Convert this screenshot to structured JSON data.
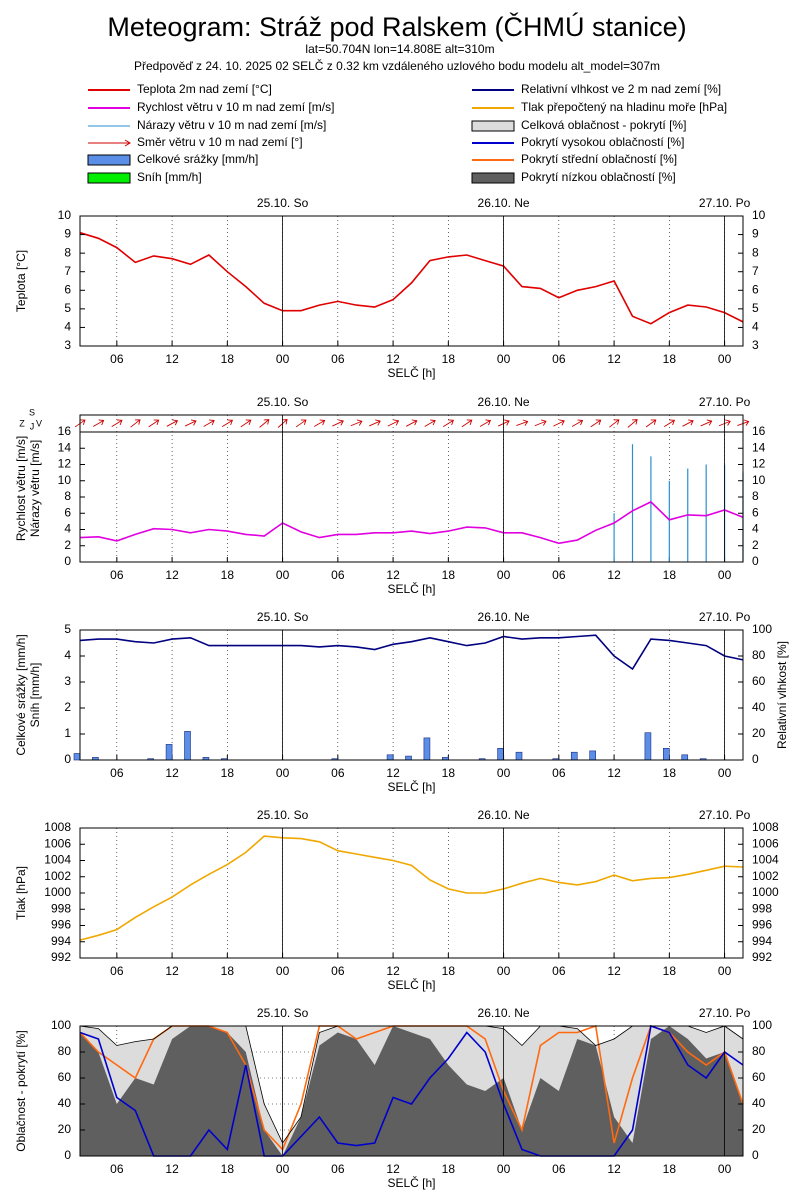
{
  "header": {
    "title": "Meteogram: Stráž pod Ralskem (ČHMÚ stanice)",
    "location": "lat=50.704N lon=14.808E alt=310m",
    "forecast": "Předpověď z 24. 10. 2025 02 SELČ z 0.32 km vzdáleného uzlového bodu modelu alt_model=307m"
  },
  "chart_data": [
    {
      "type": "line",
      "ylabel": [
        "Teplota [°C]"
      ],
      "xlabel": "SELČ [h]",
      "xgrid": true,
      "ygrid": false,
      "xlim": [
        2,
        74
      ],
      "xticks": [
        {
          "value": 6,
          "label": "06"
        },
        {
          "value": 12,
          "label": "12"
        },
        {
          "value": 18,
          "label": "18"
        },
        {
          "value": 24,
          "label": "00"
        },
        {
          "value": 30,
          "label": "06"
        },
        {
          "value": 36,
          "label": "12"
        },
        {
          "value": 42,
          "label": "18"
        },
        {
          "value": 48,
          "label": "00"
        },
        {
          "value": 54,
          "label": "06"
        },
        {
          "value": 60,
          "label": "12"
        },
        {
          "value": 66,
          "label": "18"
        },
        {
          "value": 72,
          "label": "00"
        }
      ],
      "days": [
        {
          "value": 24,
          "label": "25.10. So"
        },
        {
          "value": 48,
          "label": "26.10. Ne"
        },
        {
          "value": 72,
          "label": "27.10. Po"
        }
      ],
      "ylim": [
        3,
        10
      ],
      "yticks": [
        3,
        4,
        5,
        6,
        7,
        8,
        9,
        10
      ],
      "x": [
        2,
        4,
        6,
        8,
        10,
        12,
        14,
        16,
        18,
        20,
        22,
        24,
        26,
        28,
        30,
        32,
        34,
        36,
        38,
        40,
        42,
        44,
        46,
        48,
        50,
        52,
        54,
        56,
        58,
        60,
        62,
        64,
        66,
        68,
        70,
        72,
        74
      ],
      "series": [
        {
          "name": "Teplota 2m nad zemí [°C]",
          "color": "#e00000",
          "style": "line",
          "values": [
            9.1,
            8.8,
            8.3,
            7.5,
            7.85,
            7.7,
            7.4,
            7.9,
            7.0,
            6.2,
            5.3,
            4.9,
            4.9,
            5.2,
            5.4,
            5.2,
            5.1,
            5.5,
            6.4,
            7.6,
            7.8,
            7.9,
            7.6,
            7.3,
            6.2,
            6.1,
            5.6,
            6.0,
            6.2,
            6.5,
            4.6,
            4.2,
            4.8,
            5.2,
            5.1,
            4.8,
            4.3
          ]
        }
      ]
    },
    {
      "type": "line",
      "ylabel": [
        "Rychlost větru [m/s]",
        "Nárazy větru [m/s]"
      ],
      "xlabel": "SELČ [h]",
      "xgrid": true,
      "ygrid": false,
      "compass": [
        "S",
        "Z",
        "J",
        "V"
      ],
      "xlim": [
        2,
        74
      ],
      "xticks": [
        {
          "value": 6,
          "label": "06"
        },
        {
          "value": 12,
          "label": "12"
        },
        {
          "value": 18,
          "label": "18"
        },
        {
          "value": 24,
          "label": "00"
        },
        {
          "value": 30,
          "label": "06"
        },
        {
          "value": 36,
          "label": "12"
        },
        {
          "value": 42,
          "label": "18"
        },
        {
          "value": 48,
          "label": "00"
        },
        {
          "value": 54,
          "label": "06"
        },
        {
          "value": 60,
          "label": "12"
        },
        {
          "value": 66,
          "label": "18"
        },
        {
          "value": 72,
          "label": "00"
        }
      ],
      "days": [
        {
          "value": 24,
          "label": "25.10. So"
        },
        {
          "value": 48,
          "label": "26.10. Ne"
        },
        {
          "value": 72,
          "label": "27.10. Po"
        }
      ],
      "ylim": [
        0,
        16
      ],
      "yticks": [
        0,
        2,
        4,
        6,
        8,
        10,
        12,
        14,
        16
      ],
      "x": [
        2,
        4,
        6,
        8,
        10,
        12,
        14,
        16,
        18,
        20,
        22,
        24,
        26,
        28,
        30,
        32,
        34,
        36,
        38,
        40,
        42,
        44,
        46,
        48,
        50,
        52,
        54,
        56,
        58,
        60,
        62,
        64,
        66,
        68,
        70,
        72,
        74
      ],
      "series": [
        {
          "name": "Rychlost větru v 10 m nad zemí [m/s]",
          "color": "#e000e0",
          "style": "line",
          "values": [
            3.0,
            3.1,
            2.6,
            3.4,
            4.1,
            4.0,
            3.6,
            4.0,
            3.8,
            3.4,
            3.2,
            4.8,
            3.7,
            3.0,
            3.4,
            3.4,
            3.6,
            3.6,
            3.8,
            3.5,
            3.8,
            4.3,
            4.2,
            3.6,
            3.6,
            3.0,
            2.3,
            2.7,
            3.9,
            4.8,
            6.3,
            7.4,
            5.2,
            5.8,
            5.7,
            6.4,
            5.5
          ]
        },
        {
          "name": "Nárazy větru v 10 m nad zemí [m/s]",
          "color": "#2a8fcc",
          "style": "impulse",
          "values": [
            null,
            null,
            null,
            null,
            null,
            null,
            null,
            null,
            null,
            null,
            null,
            null,
            null,
            null,
            null,
            null,
            null,
            null,
            null,
            null,
            null,
            null,
            null,
            null,
            null,
            null,
            null,
            null,
            null,
            6,
            14.5,
            13,
            10,
            11.5,
            12,
            12,
            11
          ]
        },
        {
          "name": "Směr větru v 10 m nad zemí [°]",
          "color": "#d00000",
          "style": "arrow",
          "values": [
            235,
            240,
            238,
            232,
            236,
            242,
            245,
            240,
            238,
            236,
            230,
            228,
            235,
            240,
            245,
            248,
            246,
            244,
            242,
            240,
            238,
            236,
            240,
            245,
            250,
            248,
            244,
            240,
            236,
            232,
            230,
            234,
            238,
            242,
            246,
            248,
            250
          ]
        }
      ]
    },
    {
      "type": "bar",
      "ylabel": [
        "Celkové srážky [mm/h]",
        "Sníh [mm/h]"
      ],
      "y2label": "Relativní vlhkost [%]",
      "xlabel": "SELČ [h]",
      "xgrid": true,
      "ygrid": false,
      "xlim": [
        2,
        74
      ],
      "xticks": [
        {
          "value": 6,
          "label": "06"
        },
        {
          "value": 12,
          "label": "12"
        },
        {
          "value": 18,
          "label": "18"
        },
        {
          "value": 24,
          "label": "00"
        },
        {
          "value": 30,
          "label": "06"
        },
        {
          "value": 36,
          "label": "12"
        },
        {
          "value": 42,
          "label": "18"
        },
        {
          "value": 48,
          "label": "00"
        },
        {
          "value": 54,
          "label": "06"
        },
        {
          "value": 60,
          "label": "12"
        },
        {
          "value": 66,
          "label": "18"
        },
        {
          "value": 72,
          "label": "00"
        }
      ],
      "days": [
        {
          "value": 24,
          "label": "25.10. So"
        },
        {
          "value": 48,
          "label": "26.10. Ne"
        },
        {
          "value": 72,
          "label": "27.10. Po"
        }
      ],
      "ylim": [
        0,
        5
      ],
      "yticks": [
        0,
        1,
        2,
        3,
        4,
        5
      ],
      "y2lim": [
        0,
        100
      ],
      "y2ticks": [
        0,
        20,
        40,
        60,
        80,
        100
      ],
      "x": [
        2,
        4,
        6,
        8,
        10,
        12,
        14,
        16,
        18,
        20,
        22,
        24,
        26,
        28,
        30,
        32,
        34,
        36,
        38,
        40,
        42,
        44,
        46,
        48,
        50,
        52,
        54,
        56,
        58,
        60,
        62,
        64,
        66,
        68,
        70,
        72,
        74
      ],
      "series": [
        {
          "name": "Celkové srážky [mm/h]",
          "color": "#5b8ee6",
          "style": "bar",
          "values": [
            0.25,
            0.1,
            0,
            0,
            0.05,
            0.6,
            1.1,
            0.1,
            0.05,
            0,
            0,
            0,
            0,
            0,
            0.05,
            0,
            0,
            0.2,
            0.15,
            0.85,
            0.1,
            0,
            0.05,
            0.45,
            0.3,
            0,
            0.05,
            0.3,
            0.35,
            0,
            0,
            1.05,
            0.45,
            0.2,
            0.05,
            0,
            0
          ]
        },
        {
          "name": "Sníh [mm/h]",
          "color": "#00ee00",
          "style": "bar",
          "values": [
            0,
            0,
            0,
            0,
            0,
            0,
            0,
            0,
            0,
            0,
            0,
            0,
            0,
            0,
            0,
            0,
            0,
            0,
            0,
            0,
            0,
            0,
            0,
            0,
            0,
            0,
            0,
            0,
            0,
            0,
            0,
            0,
            0,
            0,
            0,
            0,
            0
          ]
        },
        {
          "name": "Relativní vlhkost ve 2 m nad zemí [%]",
          "color": "#000080",
          "style": "line",
          "axis": "y2",
          "values": [
            92,
            93,
            93,
            91,
            90,
            93,
            94,
            88,
            88,
            88,
            88,
            88,
            88,
            87,
            88,
            87,
            85,
            89,
            91,
            94,
            91,
            88,
            90,
            95,
            93,
            94,
            94,
            95,
            96,
            80,
            70,
            93,
            92,
            90,
            88,
            80,
            77
          ]
        }
      ]
    },
    {
      "type": "line",
      "ylabel": [
        "Tlak [hPa]"
      ],
      "xlabel": "SELČ [h]",
      "xgrid": true,
      "ygrid": false,
      "xlim": [
        2,
        74
      ],
      "xticks": [
        {
          "value": 6,
          "label": "06"
        },
        {
          "value": 12,
          "label": "12"
        },
        {
          "value": 18,
          "label": "18"
        },
        {
          "value": 24,
          "label": "00"
        },
        {
          "value": 30,
          "label": "06"
        },
        {
          "value": 36,
          "label": "12"
        },
        {
          "value": 42,
          "label": "18"
        },
        {
          "value": 48,
          "label": "00"
        },
        {
          "value": 54,
          "label": "06"
        },
        {
          "value": 60,
          "label": "12"
        },
        {
          "value": 66,
          "label": "18"
        },
        {
          "value": 72,
          "label": "00"
        }
      ],
      "days": [
        {
          "value": 24,
          "label": "25.10. So"
        },
        {
          "value": 48,
          "label": "26.10. Ne"
        },
        {
          "value": 72,
          "label": "27.10. Po"
        }
      ],
      "ylim": [
        992,
        1008
      ],
      "yticks": [
        992,
        994,
        996,
        998,
        1000,
        1002,
        1004,
        1006,
        1008
      ],
      "x": [
        2,
        4,
        6,
        8,
        10,
        12,
        14,
        16,
        18,
        20,
        22,
        24,
        26,
        28,
        30,
        32,
        34,
        36,
        38,
        40,
        42,
        44,
        46,
        48,
        50,
        52,
        54,
        56,
        58,
        60,
        62,
        64,
        66,
        68,
        70,
        72,
        74
      ],
      "series": [
        {
          "name": "Tlak přepočtený na hladinu moře [hPa]",
          "color": "#f0a800",
          "style": "line",
          "values": [
            994.2,
            994.8,
            995.5,
            997,
            998.3,
            999.5,
            1001,
            1002.3,
            1003.5,
            1005,
            1007,
            1006.8,
            1006.7,
            1006.3,
            1005.2,
            1004.8,
            1004.4,
            1004,
            1003.4,
            1001.6,
            1000.5,
            1000,
            1000,
            1000.5,
            1001.2,
            1001.8,
            1001.3,
            1001,
            1001.4,
            1002.2,
            1001.5,
            1001.8,
            1001.9,
            1002.3,
            1002.8,
            1003.3,
            1003.2
          ]
        }
      ]
    },
    {
      "type": "area",
      "ylabel": [
        "Oblačnost - pokrytí [%]"
      ],
      "xlabel": "SELČ [h]",
      "xgrid": true,
      "ygrid": true,
      "xlim": [
        2,
        74
      ],
      "xticks": [
        {
          "value": 6,
          "label": "06"
        },
        {
          "value": 12,
          "label": "12"
        },
        {
          "value": 18,
          "label": "18"
        },
        {
          "value": 24,
          "label": "00"
        },
        {
          "value": 30,
          "label": "06"
        },
        {
          "value": 36,
          "label": "12"
        },
        {
          "value": 42,
          "label": "18"
        },
        {
          "value": 48,
          "label": "00"
        },
        {
          "value": 54,
          "label": "06"
        },
        {
          "value": 60,
          "label": "12"
        },
        {
          "value": 66,
          "label": "18"
        },
        {
          "value": 72,
          "label": "00"
        }
      ],
      "days": [
        {
          "value": 24,
          "label": "25.10. So"
        },
        {
          "value": 48,
          "label": "26.10. Ne"
        },
        {
          "value": 72,
          "label": "27.10. Po"
        }
      ],
      "ylim": [
        0,
        100
      ],
      "yticks": [
        0,
        20,
        40,
        60,
        80,
        100
      ],
      "x": [
        2,
        4,
        6,
        8,
        10,
        12,
        14,
        16,
        18,
        20,
        22,
        24,
        26,
        28,
        30,
        32,
        34,
        36,
        38,
        40,
        42,
        44,
        46,
        48,
        50,
        52,
        54,
        56,
        58,
        60,
        62,
        64,
        66,
        68,
        70,
        72,
        74
      ],
      "series": [
        {
          "name": "Celková oblačnost - pokrytí [%]",
          "color": "#dcdcdc",
          "style": "area",
          "outline": "#000000",
          "values": [
            100,
            98,
            85,
            88,
            90,
            100,
            100,
            100,
            100,
            100,
            40,
            10,
            30,
            95,
            100,
            100,
            100,
            100,
            100,
            100,
            100,
            100,
            100,
            98,
            85,
            100,
            100,
            98,
            85,
            90,
            100,
            100,
            100,
            100,
            95,
            100,
            90
          ]
        },
        {
          "name": "Pokrytí nízkou oblačností [%]",
          "color": "#5f5f5f",
          "style": "area",
          "values": [
            95,
            80,
            40,
            60,
            55,
            90,
            100,
            100,
            95,
            80,
            20,
            0,
            30,
            85,
            95,
            90,
            70,
            100,
            95,
            90,
            70,
            55,
            50,
            60,
            20,
            60,
            50,
            90,
            85,
            30,
            10,
            90,
            100,
            90,
            75,
            80,
            40
          ]
        },
        {
          "name": "Pokrytí střední oblačností [%]",
          "color": "#ff6a10",
          "style": "line",
          "values": [
            95,
            80,
            70,
            60,
            90,
            100,
            100,
            100,
            95,
            70,
            20,
            5,
            40,
            100,
            100,
            90,
            95,
            100,
            100,
            100,
            100,
            100,
            90,
            50,
            20,
            85,
            95,
            95,
            100,
            10,
            60,
            100,
            95,
            80,
            70,
            80,
            40
          ]
        },
        {
          "name": "Pokrytí vysokou oblačností [%]",
          "color": "#0000cc",
          "style": "line",
          "values": [
            95,
            90,
            45,
            35,
            0,
            0,
            0,
            20,
            5,
            70,
            0,
            0,
            15,
            30,
            10,
            8,
            10,
            45,
            40,
            60,
            75,
            95,
            80,
            40,
            5,
            0,
            0,
            0,
            0,
            0,
            20,
            100,
            95,
            70,
            60,
            80,
            70
          ]
        }
      ]
    }
  ]
}
